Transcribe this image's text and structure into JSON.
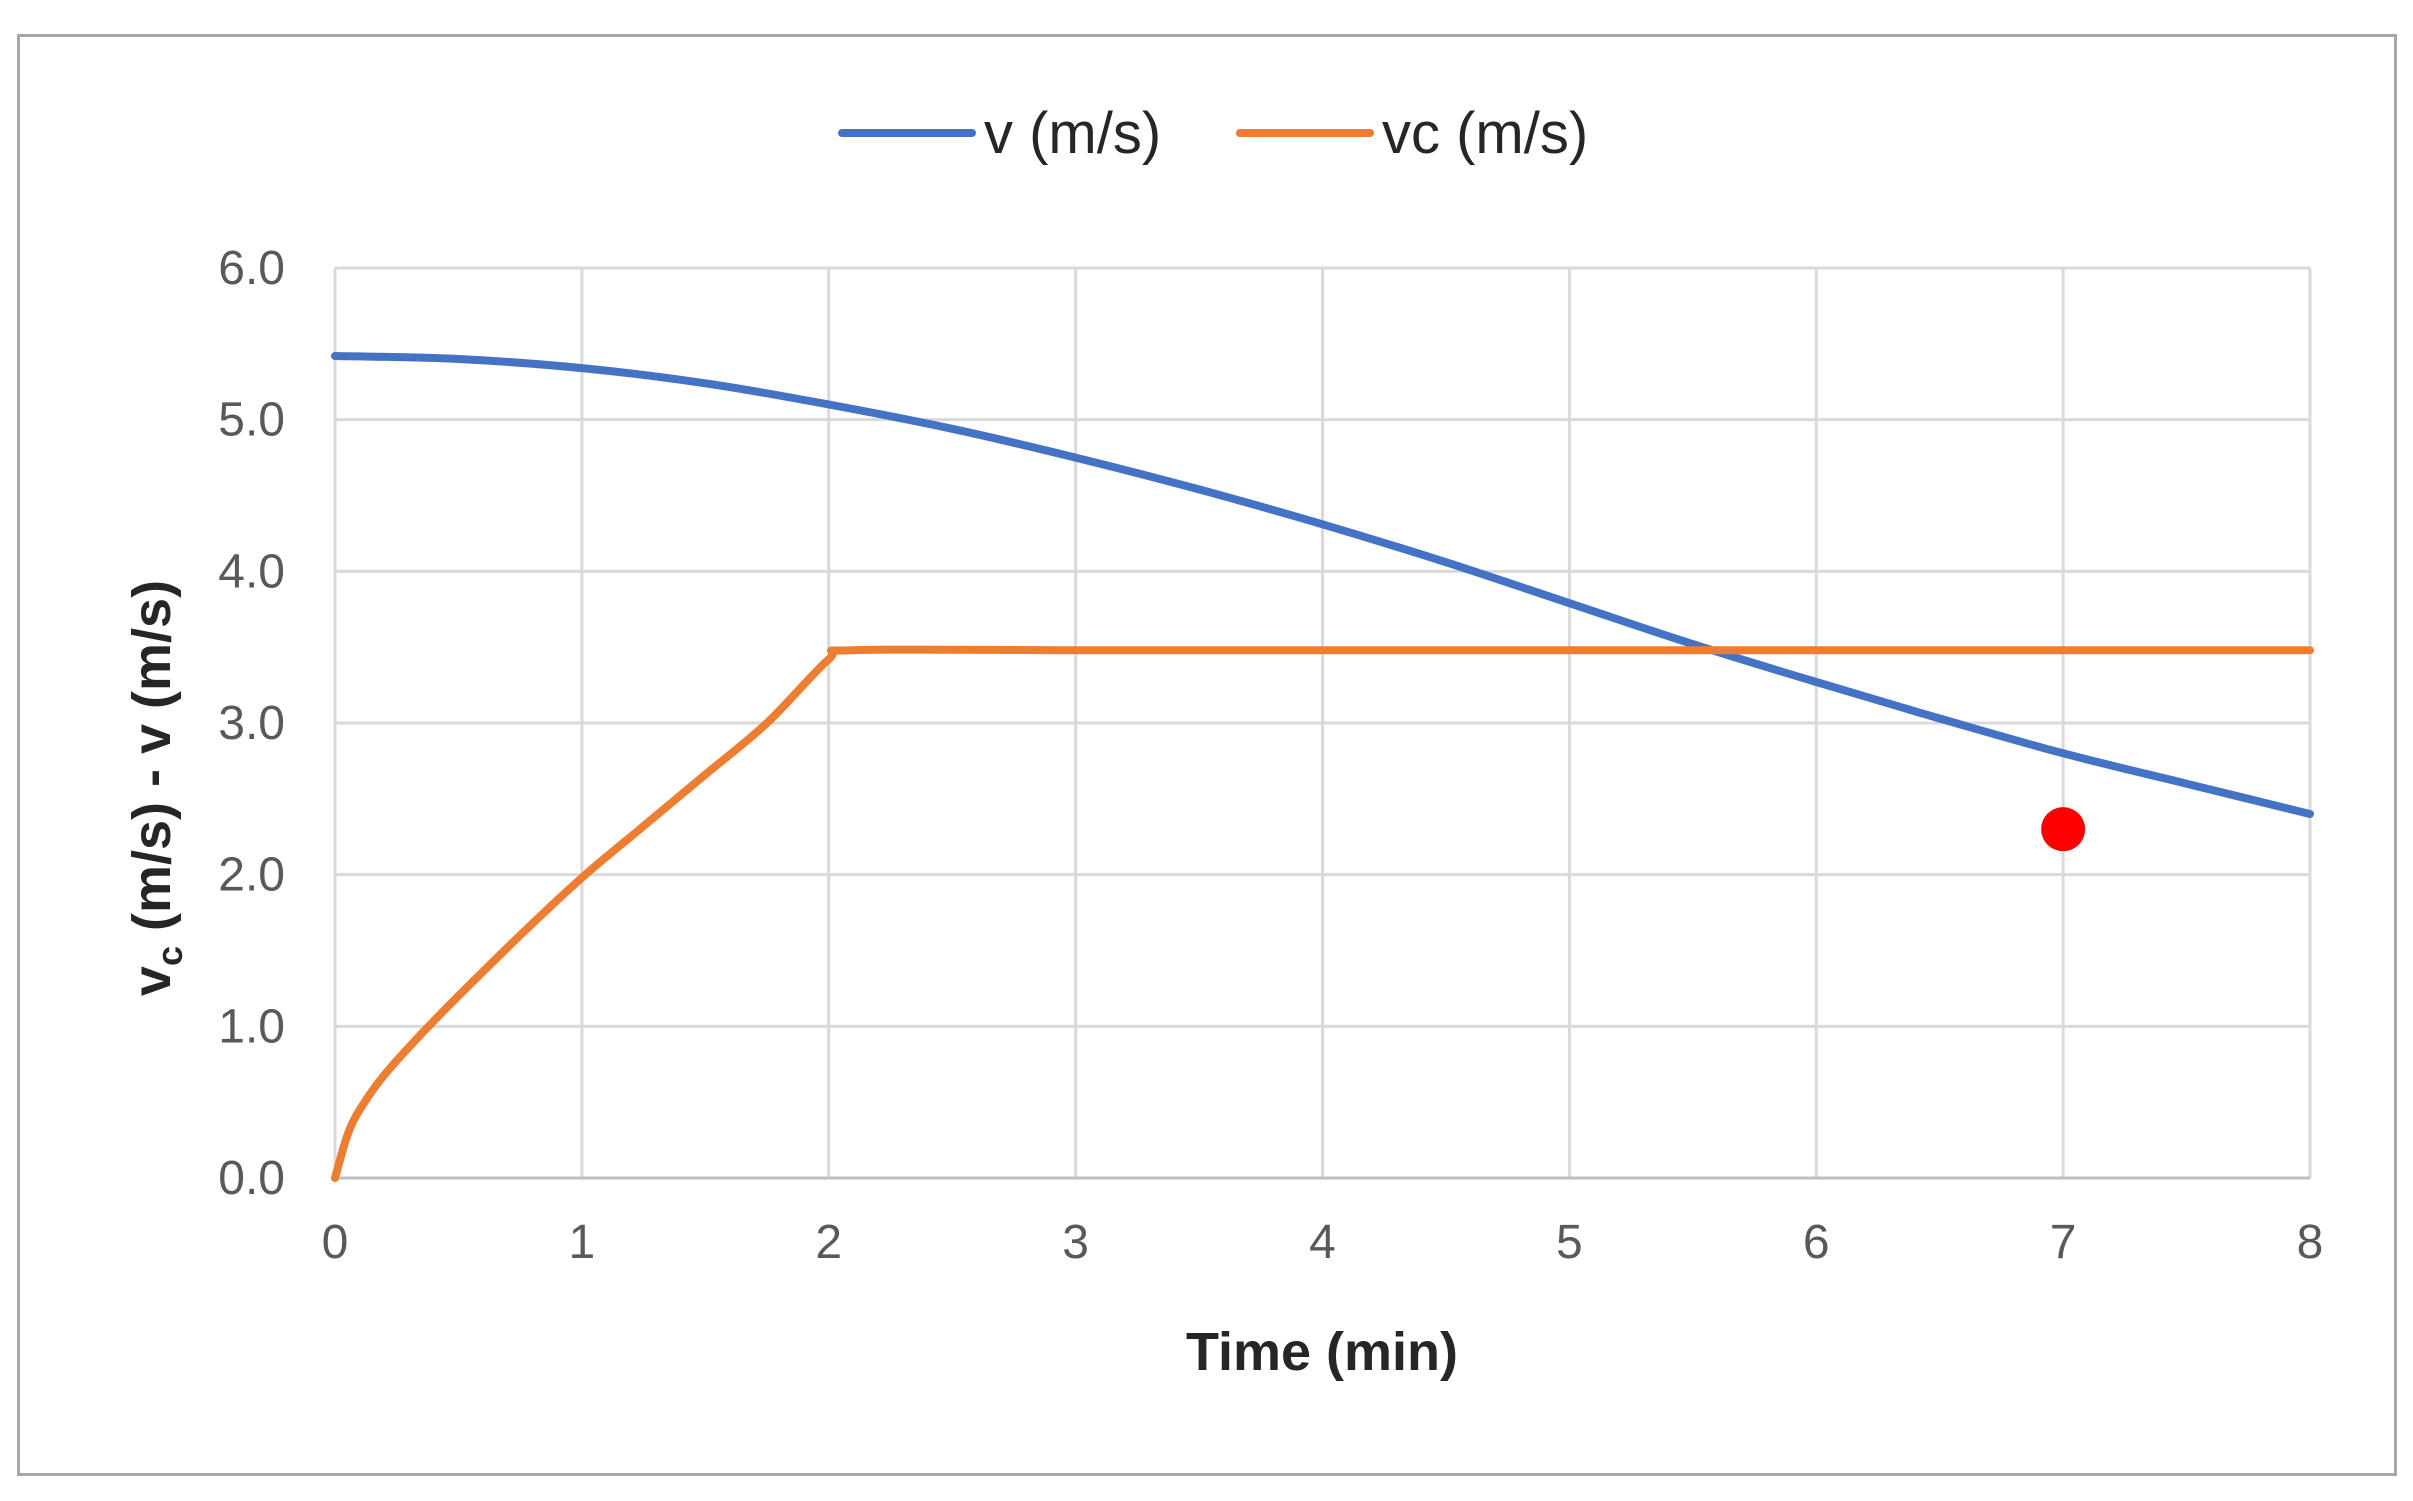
{
  "chart_data": {
    "type": "line",
    "title": "",
    "xlabel": "Time (min)",
    "ylabel": {
      "main": "v",
      "sub": "c",
      "rest": " (m/s) - v (m/s)"
    },
    "xlim": [
      0,
      8
    ],
    "ylim": [
      0,
      6
    ],
    "x_ticks": [
      "0",
      "1",
      "2",
      "3",
      "4",
      "5",
      "6",
      "7",
      "8"
    ],
    "y_ticks": [
      "0.0",
      "1.0",
      "2.0",
      "3.0",
      "4.0",
      "5.0",
      "6.0"
    ],
    "grid": true,
    "legend_position": "top",
    "series": [
      {
        "name": "v (m/s)",
        "color": "#4472c4",
        "x": [
          0,
          0.5,
          1,
          1.5,
          2,
          2.5,
          3,
          3.5,
          4,
          4.5,
          5,
          5.5,
          6,
          6.5,
          7,
          7.5,
          8
        ],
        "y": [
          5.42,
          5.4,
          5.34,
          5.24,
          5.1,
          4.94,
          4.75,
          4.54,
          4.31,
          4.06,
          3.79,
          3.52,
          3.27,
          3.03,
          2.8,
          2.6,
          2.4
        ]
      },
      {
        "name": "vc (m/s)",
        "color": "#ed7d31",
        "x": [
          0,
          0.05,
          0.1,
          0.2,
          0.35,
          0.5,
          0.75,
          1,
          1.25,
          1.5,
          1.75,
          2,
          2.1,
          3,
          4,
          5,
          6,
          7,
          8
        ],
        "y": [
          0,
          0.28,
          0.45,
          0.68,
          0.95,
          1.2,
          1.6,
          1.98,
          2.32,
          2.66,
          3.0,
          3.42,
          3.48,
          3.48,
          3.48,
          3.48,
          3.48,
          3.48,
          3.48
        ]
      }
    ],
    "annotations": [
      {
        "type": "point",
        "x": 7.0,
        "y": 2.3,
        "color": "#ff0000"
      }
    ]
  }
}
